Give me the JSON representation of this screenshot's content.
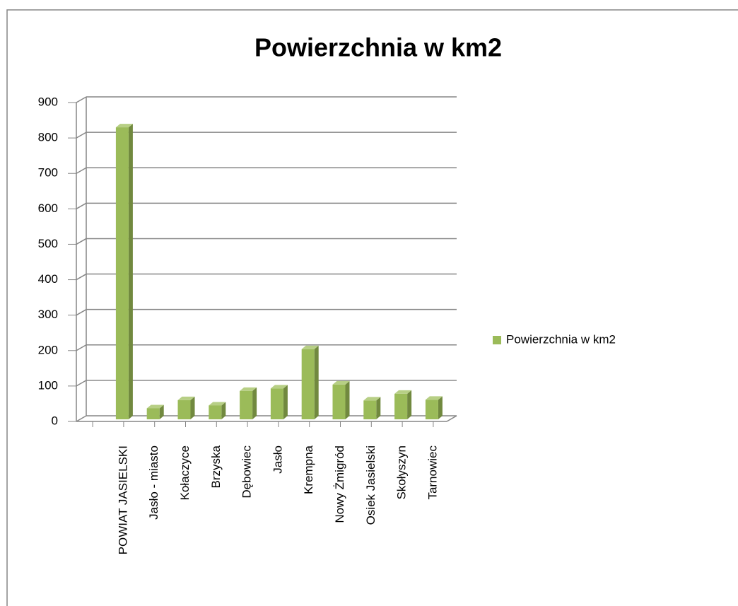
{
  "chart_data": {
    "type": "bar",
    "title": "Powierzchnia w km2",
    "categories": [
      "POWIAT JASIELSKI",
      "Jasło  - miasto",
      "Kołaczyce",
      "Brzyska",
      "Dębowiec",
      "Jasło",
      "Krempna",
      "Nowy Żmigród",
      "Osiek Jasielski",
      "Skołyszyn",
      "Tarnowiec"
    ],
    "series": [
      {
        "name": "Powierzchnia w km2",
        "color": "#9bbb59",
        "values": [
          830,
          37,
          60,
          45,
          86,
          93,
          204,
          104,
          59,
          78,
          61
        ]
      }
    ],
    "ylim": [
      0,
      900
    ],
    "yticks": [
      0,
      100,
      200,
      300,
      400,
      500,
      600,
      700,
      800,
      900
    ],
    "grid": true,
    "legend": "right"
  }
}
